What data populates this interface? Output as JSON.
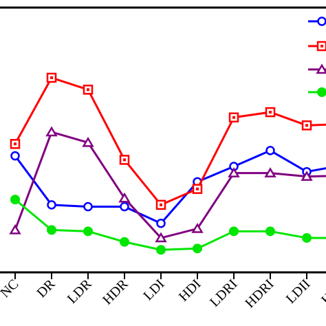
{
  "chart_data": {
    "type": "line",
    "title": "",
    "xlabel": "",
    "ylabel": "",
    "categories": [
      "NC",
      "DR",
      "LDR",
      "HDR",
      "LDI",
      "HDI",
      "LDRI",
      "HDRI",
      "LDII",
      "HDII"
    ],
    "ylim": [
      0,
      10
    ],
    "grid": false,
    "legend": "top-right",
    "series": [
      {
        "color": "#0000ff",
        "marker": "circle",
        "values": [
          4.4,
          2.55,
          2.48,
          2.48,
          1.85,
          3.42,
          4.0,
          4.6,
          3.8,
          4.05
        ]
      },
      {
        "color": "#ff0000",
        "marker": "square-dot",
        "values": [
          4.85,
          7.35,
          6.9,
          4.25,
          2.55,
          3.15,
          5.85,
          6.05,
          5.55,
          5.6
        ]
      },
      {
        "color": "#800080",
        "marker": "triangle",
        "values": [
          1.6,
          5.3,
          4.9,
          2.8,
          1.3,
          1.65,
          3.75,
          3.75,
          3.62,
          3.65
        ]
      },
      {
        "color": "#00e600",
        "marker": "filled-circle",
        "values": [
          2.75,
          1.6,
          1.55,
          1.15,
          0.85,
          0.9,
          1.55,
          1.55,
          1.3,
          1.3
        ]
      }
    ]
  }
}
